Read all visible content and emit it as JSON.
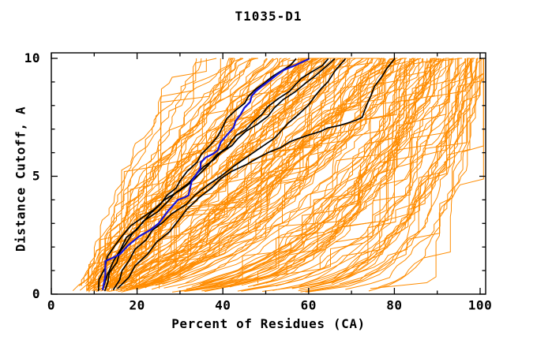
{
  "title": "T1035-D1",
  "colors": {
    "background": "#ffffff",
    "axis": "#000000",
    "orange_models": "#ff8c00",
    "black_models": "#000000",
    "blue_highlight": "#1212d9"
  },
  "chart_data": {
    "type": "line",
    "title": "T1035-D1",
    "xlabel": "Percent of Residues (CA)",
    "ylabel": "Distance Cutoff, A",
    "xlim": [
      0,
      101.3
    ],
    "ylim": [
      0,
      10.25
    ],
    "grid": false,
    "legend": "none",
    "x_ticks_major": [
      0,
      20,
      40,
      60,
      80,
      100
    ],
    "x_ticks_minor": [
      10,
      30,
      50,
      70,
      90
    ],
    "y_ticks_major": [
      0,
      5,
      10
    ],
    "y_ticks_minor": [
      1,
      2,
      3,
      4,
      6,
      7,
      8,
      9
    ],
    "series": [
      {
        "name": "black-model-1",
        "color": "#000000",
        "width": 1.7,
        "points": [
          [
            12.5,
            0.15
          ],
          [
            13.5,
            0.9
          ],
          [
            16,
            1.8
          ],
          [
            19,
            2.6
          ],
          [
            23,
            3.4
          ],
          [
            27,
            4.2
          ],
          [
            30,
            4.8
          ],
          [
            34,
            5.6
          ],
          [
            37,
            6.3
          ],
          [
            40,
            7.1
          ],
          [
            43,
            7.8
          ],
          [
            46,
            8.4
          ],
          [
            50,
            9.0
          ],
          [
            53.5,
            9.45
          ],
          [
            57,
            9.97
          ]
        ]
      },
      {
        "name": "black-model-2",
        "color": "#000000",
        "width": 1.7,
        "points": [
          [
            11,
            0.15
          ],
          [
            12.5,
            1.1
          ],
          [
            15,
            2.1
          ],
          [
            18.5,
            2.9
          ],
          [
            24,
            3.6
          ],
          [
            30,
            4.4
          ],
          [
            34,
            5.0
          ],
          [
            38.5,
            5.9
          ],
          [
            42,
            6.5
          ],
          [
            45.5,
            7.0
          ],
          [
            49,
            7.6
          ],
          [
            53,
            8.3
          ],
          [
            57,
            8.9
          ],
          [
            60.5,
            9.4
          ],
          [
            64.5,
            9.97
          ]
        ]
      },
      {
        "name": "black-model-3",
        "color": "#000000",
        "width": 1.7,
        "points": [
          [
            14.5,
            0.2
          ],
          [
            16.5,
            1.0
          ],
          [
            19.5,
            1.9
          ],
          [
            23.5,
            2.7
          ],
          [
            28,
            3.4
          ],
          [
            33.5,
            4.2
          ],
          [
            39.5,
            5.0
          ],
          [
            45.5,
            5.8
          ],
          [
            49.5,
            6.3
          ],
          [
            53.5,
            6.9
          ],
          [
            57.5,
            7.6
          ],
          [
            61.5,
            8.4
          ],
          [
            64.5,
            9.0
          ],
          [
            68.5,
            9.97
          ]
        ]
      },
      {
        "name": "black-model-4",
        "color": "#000000",
        "width": 1.7,
        "points": [
          [
            12,
            0.2
          ],
          [
            14.5,
            1.4
          ],
          [
            17.5,
            2.4
          ],
          [
            21.5,
            3.1
          ],
          [
            27,
            3.9
          ],
          [
            32,
            4.7
          ],
          [
            35.5,
            5.4
          ],
          [
            39.5,
            6.0
          ],
          [
            43.5,
            6.6
          ],
          [
            48,
            7.2
          ],
          [
            52,
            7.9
          ],
          [
            57,
            8.6
          ],
          [
            61.5,
            9.25
          ],
          [
            66,
            9.97
          ]
        ]
      },
      {
        "name": "black-model-5",
        "color": "#000000",
        "width": 1.7,
        "points": [
          [
            15.5,
            0.25
          ],
          [
            19.5,
            1.2
          ],
          [
            24.5,
            2.2
          ],
          [
            29.5,
            3.1
          ],
          [
            34.5,
            4.1
          ],
          [
            39.5,
            4.9
          ],
          [
            45.5,
            5.5
          ],
          [
            50.5,
            6.0
          ],
          [
            55.5,
            6.45
          ],
          [
            60,
            6.75
          ],
          [
            64.5,
            7.05
          ],
          [
            69,
            7.25
          ],
          [
            72.5,
            7.5
          ],
          [
            74.5,
            8.4
          ],
          [
            77,
            9.2
          ],
          [
            80,
            9.97
          ]
        ]
      },
      {
        "name": "blue-highlight-model",
        "color": "#1212d9",
        "width": 2.2,
        "points": [
          [
            12,
            0.2
          ],
          [
            12.5,
            1.4
          ],
          [
            16,
            1.7
          ],
          [
            20.5,
            2.45
          ],
          [
            25,
            3.0
          ],
          [
            29.5,
            4.0
          ],
          [
            32,
            4.2
          ],
          [
            34.8,
            5.35
          ],
          [
            36,
            5.8
          ],
          [
            38.8,
            6.1
          ],
          [
            41.2,
            6.8
          ],
          [
            43,
            7.35
          ],
          [
            45,
            7.9
          ],
          [
            46.7,
            8.4
          ],
          [
            49,
            8.8
          ],
          [
            52.6,
            9.3
          ],
          [
            56.8,
            9.7
          ],
          [
            60,
            9.97
          ]
        ]
      }
    ],
    "ensemble": {
      "name": "server-models-orange",
      "color": "#ff8c00",
      "count": 165,
      "seed": 20,
      "x_start_range": [
        5,
        16
      ],
      "x_top_range": [
        31,
        100.8
      ],
      "shape": "x(y) = x0 + (xTop - x0) * (y/10)^k, monotone cumulative curves",
      "k_range": [
        0.08,
        2.1
      ]
    }
  }
}
